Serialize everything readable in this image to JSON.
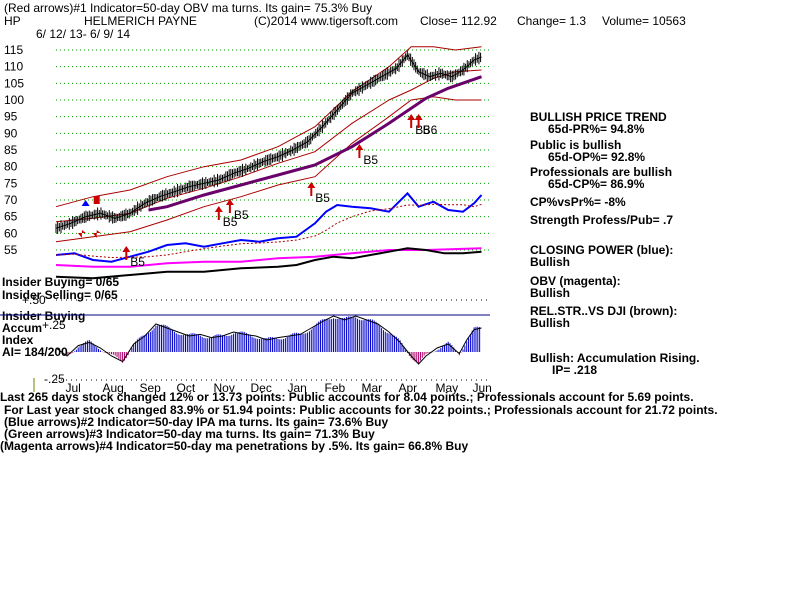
{
  "header": {
    "line1": "(Red arrows)#1 Indicator=50-day OBV ma turns. Its gain= 75.3% Buy",
    "ticker": "HP",
    "company": "HELMERICH PAYNE",
    "copyright": "(C)2014 www.tigersoft.com",
    "close": "Close= 112.92",
    "change": "Change= 1.3",
    "volume": "Volume= 10563",
    "date_range": "6/ 12/ 13- 6/ 9/ 14"
  },
  "side_panel": {
    "trend_title": "BULLISH PRICE TREND",
    "pr": "65d-PR%= 94.8%",
    "public": "Public is bullish",
    "op": "65d-OP%= 92.8%",
    "professionals": "Professionals are bullish",
    "cp": "65d-CP%= 86.9%",
    "cpvspr": "CP%vsPr%= -8%",
    "strength": "Strength Profess/Pub= .7",
    "closing_power_title": "CLOSING POWER (blue):",
    "closing_power_value": "Bullish",
    "obv_title": "OBV (magenta):",
    "obv_value": "Bullish",
    "relstr_title": "REL.STR..VS DJI (brown):",
    "relstr_value": "Bullish",
    "accum_title": "Bullish: Accumulation Rising.",
    "ip": "IP= .218"
  },
  "insider": {
    "buying": "Insider Buying= 0/65",
    "selling": "Insider Selling= 0/65",
    "lower_buying": "Insider Buying",
    "accum": "Accum",
    "index": "Index",
    "ai": "AI= 184/200",
    "tick_top": "+.50",
    "tick_mid": "+.25",
    "tick_bottom": "-.25"
  },
  "footer": {
    "line1_prefix": "Last",
    "line1": "265 days stock changed  12% or  13.73 points:  Public accounts for  8.04 points.;  Professionals account for  5.69 points.",
    "line2": "For Last year stock changed  83.9% or  51.94 points:  Public accounts for  30.22 points.;  Professionals account for  21.72 points.",
    "line3": "(Blue arrows)#2 Indicator=50-day IPA ma turns. Its gain= 73.6% Buy",
    "line4": "(Green arrows)#3 Indicator=50-day ma turns. Its gain= 71.3% Buy",
    "line5": "(Magenta arrows)#4 Indicator=50-day ma penetrations by .5%. Its gain= 66.8% Buy"
  },
  "annotations": [
    {
      "label": "B5",
      "month_index": 1.9
    },
    {
      "label": "B5",
      "month_index": 4.4
    },
    {
      "label": "B5",
      "month_index": 4.7
    },
    {
      "label": "B5",
      "month_index": 6.9
    },
    {
      "label": "B5",
      "month_index": 8.2
    },
    {
      "label": "B5",
      "month_index": 9.6
    },
    {
      "label": "B6",
      "month_index": 9.8
    }
  ],
  "colors": {
    "price": "#000000",
    "band": "#aa0000",
    "ma50": "#000000",
    "ma200": "#6a006a",
    "closing_power": "#0000ff",
    "obv": "#ff00ff",
    "relstr": "#000000",
    "accum_bars": "#0000cc",
    "accum_neg": "#aa0066",
    "grid": "#00a000",
    "signal": "#cc0000",
    "blue_signal": "#0000ff",
    "separator": "#000080"
  },
  "chart_data": {
    "type": "line",
    "title": "HELMERICH PAYNE",
    "xlabel": "",
    "ylabel": "",
    "ylim": [
      55,
      115
    ],
    "yticks": [
      55,
      60,
      65,
      70,
      75,
      80,
      85,
      90,
      95,
      100,
      105,
      110,
      115
    ],
    "month_labels": [
      "Jul",
      "Aug",
      "Sep",
      "Oct",
      "Nov",
      "Dec",
      "Jan",
      "Feb",
      "Mar",
      "Apr",
      "May",
      "Jun"
    ],
    "grid": true,
    "price_points": [
      [
        0.0,
        61.5
      ],
      [
        0.4,
        63.0
      ],
      [
        0.8,
        65.0
      ],
      [
        1.2,
        66.0
      ],
      [
        1.6,
        64.5
      ],
      [
        2.0,
        66.0
      ],
      [
        2.4,
        69.0
      ],
      [
        2.8,
        71.0
      ],
      [
        3.2,
        72.5
      ],
      [
        3.6,
        74.0
      ],
      [
        4.0,
        75.0
      ],
      [
        4.4,
        76.0
      ],
      [
        4.8,
        78.0
      ],
      [
        5.2,
        79.5
      ],
      [
        5.6,
        81.5
      ],
      [
        6.0,
        83.0
      ],
      [
        6.4,
        85.0
      ],
      [
        6.8,
        87.5
      ],
      [
        7.2,
        92.0
      ],
      [
        7.6,
        97.0
      ],
      [
        8.0,
        102.0
      ],
      [
        8.4,
        104.5
      ],
      [
        8.8,
        107.0
      ],
      [
        9.2,
        109.5
      ],
      [
        9.5,
        113.5
      ],
      [
        9.8,
        108.5
      ],
      [
        10.1,
        107.0
      ],
      [
        10.4,
        108.0
      ],
      [
        10.7,
        107.0
      ],
      [
        11.0,
        109.0
      ],
      [
        11.3,
        112.0
      ],
      [
        11.5,
        112.9
      ]
    ],
    "band_upper": [
      [
        0.0,
        68.0
      ],
      [
        1.0,
        71.0
      ],
      [
        2.0,
        73.0
      ],
      [
        3.0,
        77.0
      ],
      [
        4.0,
        80.0
      ],
      [
        5.0,
        82.0
      ],
      [
        6.0,
        86.0
      ],
      [
        7.0,
        92.0
      ],
      [
        8.0,
        102.5
      ],
      [
        9.0,
        110.0
      ],
      [
        9.6,
        116.0
      ],
      [
        10.2,
        116.0
      ],
      [
        10.8,
        115.0
      ],
      [
        11.5,
        116.0
      ]
    ],
    "band_lower": [
      [
        0.0,
        57.5
      ],
      [
        1.0,
        59.0
      ],
      [
        2.0,
        60.5
      ],
      [
        3.0,
        64.0
      ],
      [
        4.0,
        68.0
      ],
      [
        5.0,
        71.0
      ],
      [
        6.0,
        74.5
      ],
      [
        7.0,
        77.0
      ],
      [
        8.0,
        87.0
      ],
      [
        9.0,
        95.0
      ],
      [
        9.6,
        100.0
      ],
      [
        10.2,
        101.0
      ],
      [
        10.8,
        100.0
      ],
      [
        11.5,
        100.0
      ]
    ],
    "ma50": [
      [
        0.0,
        63.5
      ],
      [
        1.0,
        64.5
      ],
      [
        2.0,
        66.0
      ],
      [
        3.0,
        70.5
      ],
      [
        4.0,
        73.5
      ],
      [
        5.0,
        77.0
      ],
      [
        6.0,
        81.0
      ],
      [
        7.0,
        84.5
      ],
      [
        8.0,
        93.0
      ],
      [
        9.0,
        100.0
      ],
      [
        9.6,
        103.0
      ],
      [
        10.2,
        106.5
      ],
      [
        10.8,
        108.5
      ],
      [
        11.5,
        109.0
      ]
    ],
    "ma200": [
      [
        2.5,
        67.0
      ],
      [
        3.0,
        68.0
      ],
      [
        4.0,
        71.5
      ],
      [
        5.0,
        74.5
      ],
      [
        6.0,
        77.5
      ],
      [
        7.0,
        80.5
      ],
      [
        8.0,
        86.0
      ],
      [
        9.0,
        93.0
      ],
      [
        10.0,
        100.5
      ],
      [
        10.6,
        103.5
      ],
      [
        11.5,
        107.0
      ]
    ],
    "closing_power": [
      [
        0.0,
        53.5
      ],
      [
        0.5,
        54.0
      ],
      [
        1.0,
        52.0
      ],
      [
        1.5,
        51.5
      ],
      [
        2.0,
        53.0
      ],
      [
        2.5,
        54.5
      ],
      [
        3.0,
        56.5
      ],
      [
        3.5,
        57.0
      ],
      [
        4.0,
        56.0
      ],
      [
        4.5,
        57.0
      ],
      [
        5.0,
        58.0
      ],
      [
        5.5,
        57.5
      ],
      [
        6.0,
        58.5
      ],
      [
        6.5,
        59.0
      ],
      [
        7.0,
        63.0
      ],
      [
        7.3,
        66.5
      ],
      [
        7.6,
        68.5
      ],
      [
        8.0,
        68.0
      ],
      [
        8.5,
        67.5
      ],
      [
        9.0,
        66.5
      ],
      [
        9.5,
        72.0
      ],
      [
        9.8,
        68.0
      ],
      [
        10.2,
        69.5
      ],
      [
        10.6,
        67.0
      ],
      [
        11.0,
        66.5
      ],
      [
        11.3,
        69.0
      ],
      [
        11.5,
        71.5
      ]
    ],
    "obv": [
      [
        0.0,
        50.5
      ],
      [
        1.0,
        50.0
      ],
      [
        2.0,
        50.0
      ],
      [
        3.0,
        51.0
      ],
      [
        4.0,
        51.5
      ],
      [
        5.0,
        51.5
      ],
      [
        6.0,
        52.5
      ],
      [
        7.0,
        53.0
      ],
      [
        8.0,
        54.0
      ],
      [
        9.0,
        55.0
      ],
      [
        10.0,
        55.0
      ],
      [
        11.5,
        55.5
      ]
    ],
    "relstr": [
      [
        0.0,
        47.0
      ],
      [
        1.0,
        46.5
      ],
      [
        2.0,
        47.5
      ],
      [
        3.0,
        48.5
      ],
      [
        4.0,
        48.5
      ],
      [
        5.0,
        49.5
      ],
      [
        6.0,
        50.0
      ],
      [
        6.5,
        50.5
      ],
      [
        7.0,
        52.0
      ],
      [
        7.5,
        53.0
      ],
      [
        8.0,
        52.5
      ],
      [
        8.5,
        53.5
      ],
      [
        9.0,
        54.5
      ],
      [
        9.5,
        55.5
      ],
      [
        10.0,
        55.0
      ],
      [
        10.5,
        54.0
      ],
      [
        11.0,
        54.0
      ],
      [
        11.5,
        54.5
      ]
    ],
    "accumulation": [
      [
        0.0,
        0.05
      ],
      [
        0.3,
        -0.05
      ],
      [
        0.6,
        0.08
      ],
      [
        0.9,
        0.12
      ],
      [
        1.2,
        0.05
      ],
      [
        1.5,
        -0.05
      ],
      [
        1.8,
        -0.12
      ],
      [
        2.1,
        0.1
      ],
      [
        2.4,
        0.2
      ],
      [
        2.7,
        0.35
      ],
      [
        3.0,
        0.3
      ],
      [
        3.3,
        0.25
      ],
      [
        3.6,
        0.2
      ],
      [
        3.9,
        0.22
      ],
      [
        4.2,
        0.18
      ],
      [
        4.5,
        0.2
      ],
      [
        4.8,
        0.25
      ],
      [
        5.1,
        0.22
      ],
      [
        5.4,
        0.2
      ],
      [
        5.7,
        0.15
      ],
      [
        6.0,
        0.18
      ],
      [
        6.3,
        0.2
      ],
      [
        6.6,
        0.22
      ],
      [
        6.9,
        0.3
      ],
      [
        7.2,
        0.38
      ],
      [
        7.5,
        0.45
      ],
      [
        7.8,
        0.4
      ],
      [
        8.1,
        0.45
      ],
      [
        8.4,
        0.4
      ],
      [
        8.7,
        0.35
      ],
      [
        9.0,
        0.25
      ],
      [
        9.3,
        0.12
      ],
      [
        9.6,
        -0.05
      ],
      [
        9.8,
        -0.15
      ],
      [
        10.0,
        -0.05
      ],
      [
        10.3,
        0.05
      ],
      [
        10.6,
        0.1
      ],
      [
        10.9,
        -0.02
      ],
      [
        11.1,
        0.15
      ],
      [
        11.3,
        0.28
      ],
      [
        11.5,
        0.3
      ]
    ],
    "accum_ylim": [
      -0.25,
      0.5
    ]
  }
}
